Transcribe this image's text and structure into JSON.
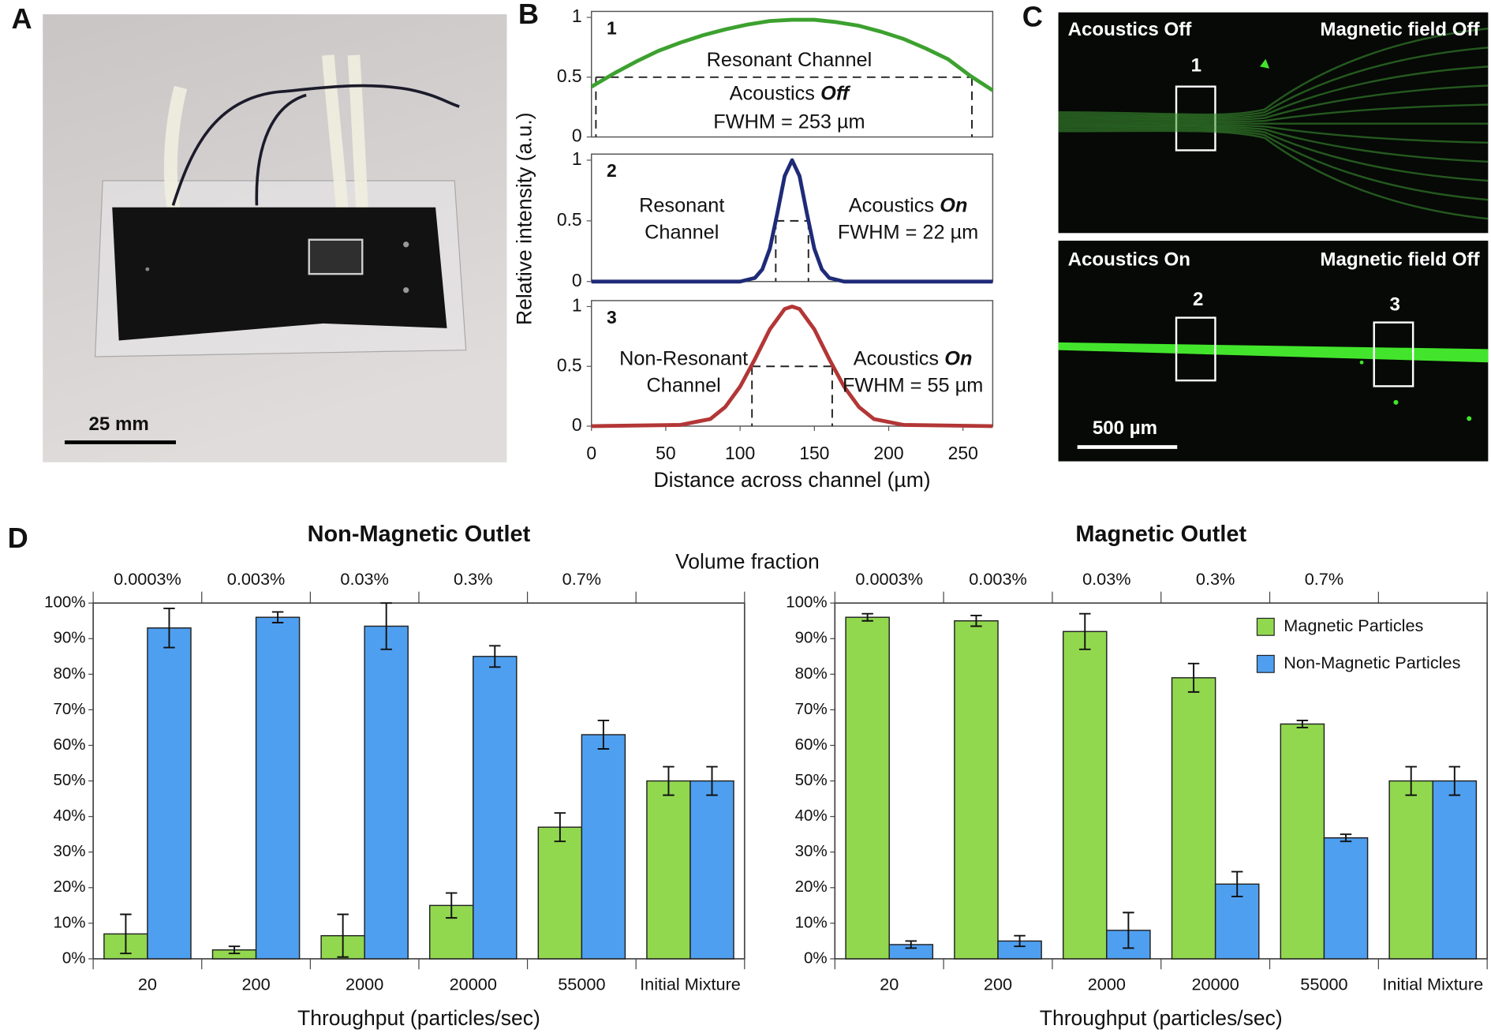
{
  "panel_labels": [
    "A",
    "B",
    "C",
    "D"
  ],
  "panel_a": {
    "scale_bar": "25 mm"
  },
  "panel_c": {
    "top": {
      "left": "Acoustics Off",
      "right": "Magnetic field Off",
      "boxes": [
        "1"
      ]
    },
    "bottom": {
      "left": "Acoustics On",
      "right": "Magnetic field Off",
      "boxes": [
        "2",
        "3"
      ],
      "scale_bar": "500 µm"
    }
  },
  "panel_d": {
    "secondary_title": "Volume fraction"
  },
  "chart_data": [
    {
      "type": "line",
      "label": "1",
      "color": "#3ca12f",
      "x": [
        0,
        15,
        30,
        45,
        60,
        75,
        90,
        105,
        120,
        135,
        150,
        165,
        180,
        195,
        210,
        225,
        240,
        255,
        270
      ],
      "values": [
        0.42,
        0.53,
        0.63,
        0.72,
        0.79,
        0.85,
        0.9,
        0.94,
        0.97,
        0.98,
        0.98,
        0.96,
        0.93,
        0.88,
        0.82,
        0.74,
        0.65,
        0.51,
        0.39
      ],
      "xlim": [
        0,
        270
      ],
      "ylim": [
        0,
        1.05
      ],
      "yticks": [
        0,
        0.5,
        1
      ],
      "half_max": 0.5,
      "fwhm_x": [
        3,
        256
      ],
      "annotations": [
        [
          "Resonant Channel"
        ],
        [
          "Acoustics",
          "Off"
        ],
        [
          "FWHM = 253 µm"
        ]
      ]
    },
    {
      "type": "line",
      "label": "2",
      "color": "#1f2b78",
      "x": [
        0,
        50,
        100,
        110,
        115,
        120,
        125,
        130,
        135,
        140,
        145,
        150,
        155,
        160,
        170,
        220,
        270
      ],
      "values": [
        0,
        0,
        0,
        0.03,
        0.1,
        0.27,
        0.56,
        0.87,
        1,
        0.87,
        0.56,
        0.27,
        0.1,
        0.03,
        0,
        0,
        0
      ],
      "xlim": [
        0,
        270
      ],
      "ylim": [
        0,
        1.05
      ],
      "yticks": [
        0,
        0.5,
        1
      ],
      "half_max": 0.5,
      "fwhm_x": [
        124,
        146
      ],
      "ylabel": "Relative intensity (a.u.)",
      "annotations": [
        [
          "Resonant"
        ],
        [
          "Channel"
        ],
        [
          "Acoustics",
          "On"
        ],
        [
          "FWHM = 22 µm"
        ]
      ]
    },
    {
      "type": "line",
      "label": "3",
      "color": "#b33636",
      "x": [
        0,
        60,
        80,
        90,
        100,
        110,
        120,
        130,
        135,
        140,
        150,
        160,
        170,
        180,
        190,
        210,
        270
      ],
      "values": [
        0,
        0.01,
        0.06,
        0.16,
        0.33,
        0.56,
        0.81,
        0.98,
        1,
        0.98,
        0.81,
        0.56,
        0.33,
        0.16,
        0.06,
        0.01,
        0
      ],
      "xlim": [
        0,
        270
      ],
      "ylim": [
        0,
        1.05
      ],
      "yticks": [
        0,
        0.5,
        1
      ],
      "xticks": [
        0,
        50,
        100,
        150,
        200,
        250
      ],
      "half_max": 0.5,
      "fwhm_x": [
        108,
        162
      ],
      "xlabel": "Distance across channel (µm)",
      "annotations": [
        [
          "Non-Resonant"
        ],
        [
          "Channel"
        ],
        [
          "Acoustics",
          "On"
        ],
        [
          "FWHM = 55 µm"
        ]
      ]
    },
    {
      "type": "bar",
      "title": "Non-Magnetic Outlet",
      "categories": [
        "20",
        "200",
        "2000",
        "20000",
        "55000",
        "Initial Mixture"
      ],
      "secondary_categories": [
        "0.0003%",
        "0.003%",
        "0.03%",
        "0.3%",
        "0.7%",
        null
      ],
      "series": [
        {
          "color": "#92d84f",
          "values": [
            7,
            2.5,
            6.5,
            15,
            37,
            50
          ],
          "errors": [
            5.5,
            1,
            6,
            3.5,
            4,
            4
          ]
        },
        {
          "color": "#4f9ff0",
          "values": [
            93,
            96,
            93.5,
            85,
            63,
            50
          ],
          "errors": [
            5.5,
            1.5,
            6.5,
            3,
            4,
            4
          ]
        }
      ],
      "ylim": [
        0,
        100
      ],
      "yticks": [
        {
          "value": 0,
          "label": "0%"
        },
        {
          "value": 10,
          "label": "10%"
        },
        {
          "value": 20,
          "label": "20%"
        },
        {
          "value": 30,
          "label": "30%"
        },
        {
          "value": 40,
          "label": "40%"
        },
        {
          "value": 50,
          "label": "50%"
        },
        {
          "value": 60,
          "label": "60%"
        },
        {
          "value": 70,
          "label": "70%"
        },
        {
          "value": 80,
          "label": "80%"
        },
        {
          "value": 90,
          "label": "90%"
        },
        {
          "value": 100,
          "label": "100%"
        }
      ],
      "xlabel": "Throughput (particles/sec)"
    },
    {
      "type": "bar",
      "title": "Magnetic Outlet",
      "categories": [
        "20",
        "200",
        "2000",
        "20000",
        "55000",
        "Initial Mixture"
      ],
      "secondary_categories": [
        "0.0003%",
        "0.003%",
        "0.03%",
        "0.3%",
        "0.7%",
        null
      ],
      "series": [
        {
          "name": "Magnetic Particles",
          "color": "#92d84f",
          "values": [
            96,
            95,
            92,
            79,
            66,
            50
          ],
          "errors": [
            1,
            1.5,
            5,
            4,
            1,
            4
          ]
        },
        {
          "name": "Non-Magnetic Particles",
          "color": "#4f9ff0",
          "values": [
            4,
            5,
            8,
            21,
            34,
            50
          ],
          "errors": [
            1,
            1.5,
            5,
            3.5,
            1,
            4
          ]
        }
      ],
      "ylim": [
        0,
        100
      ],
      "yticks": [
        {
          "value": 0,
          "label": "0%"
        },
        {
          "value": 10,
          "label": "10%"
        },
        {
          "value": 20,
          "label": "20%"
        },
        {
          "value": 30,
          "label": "30%"
        },
        {
          "value": 40,
          "label": "40%"
        },
        {
          "value": 50,
          "label": "50%"
        },
        {
          "value": 60,
          "label": "60%"
        },
        {
          "value": 70,
          "label": "70%"
        },
        {
          "value": 80,
          "label": "80%"
        },
        {
          "value": 90,
          "label": "90%"
        },
        {
          "value": 100,
          "label": "100%"
        }
      ],
      "xlabel": "Throughput (particles/sec)",
      "legend": "top-right"
    }
  ]
}
